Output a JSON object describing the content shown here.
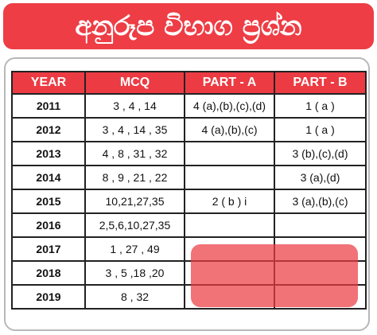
{
  "banner": {
    "title": "අනුරූප විභාග ප්‍රශ්න"
  },
  "table": {
    "headers": [
      "YEAR",
      "MCQ",
      "PART - A",
      "PART - B"
    ],
    "rows": [
      {
        "year": "2011",
        "mcq": "3 , 4 , 14",
        "part_a": "4 (a),(b),(c),(d)",
        "part_b": "1 ( a )"
      },
      {
        "year": "2012",
        "mcq": "3 , 4 , 14 , 35",
        "part_a": "4 (a),(b),(c)",
        "part_b": "1 ( a )"
      },
      {
        "year": "2013",
        "mcq": "4 , 8 , 31 , 32",
        "part_a": "",
        "part_b": "3 (b),(c),(d)"
      },
      {
        "year": "2014",
        "mcq": "8 , 9 , 21 , 22",
        "part_a": "",
        "part_b": "3 (a),(d)"
      },
      {
        "year": "2015",
        "mcq": "10,21,27,35",
        "part_a": "2 ( b ) i",
        "part_b": "3 (a),(b),(c)"
      },
      {
        "year": "2016",
        "mcq": "2,5,6,10,27,35",
        "part_a": "",
        "part_b": ""
      },
      {
        "year": "2017",
        "mcq": "1 , 27 , 49",
        "part_a": "",
        "part_b": ""
      },
      {
        "year": "2018",
        "mcq": "3 , 5 ,18 ,20",
        "part_a": "",
        "part_b": ""
      },
      {
        "year": "2019",
        "mcq": "8 , 32",
        "part_a": "",
        "part_b": ""
      }
    ]
  },
  "colors": {
    "accent": "#ec3b43",
    "frame_border": "#b8b8b8",
    "grid_line": "#222222"
  }
}
